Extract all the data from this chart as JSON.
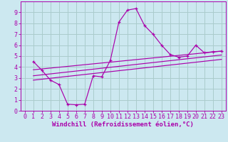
{
  "background_color": "#cce8f0",
  "grid_color": "#aacccc",
  "line_color": "#aa00aa",
  "xlim": [
    -0.5,
    23.5
  ],
  "ylim": [
    0,
    10
  ],
  "xticks": [
    0,
    1,
    2,
    3,
    4,
    5,
    6,
    7,
    8,
    9,
    10,
    11,
    12,
    13,
    14,
    15,
    16,
    17,
    18,
    19,
    20,
    21,
    22,
    23
  ],
  "yticks": [
    0,
    1,
    2,
    3,
    4,
    5,
    6,
    7,
    8,
    9
  ],
  "xlabel": "Windchill (Refroidissement éolien,°C)",
  "xlabel_fontsize": 6.5,
  "tick_fontsize": 6.0,
  "curve1_x": [
    1,
    2,
    3,
    4,
    5,
    6,
    7,
    8,
    9,
    10,
    11,
    12,
    13,
    14,
    15,
    16,
    17,
    18,
    19,
    20,
    21,
    22,
    23
  ],
  "curve1_y": [
    4.5,
    3.7,
    2.8,
    2.4,
    0.6,
    0.55,
    0.6,
    3.2,
    3.1,
    4.6,
    8.1,
    9.2,
    9.35,
    7.8,
    7.0,
    6.0,
    5.15,
    4.9,
    5.0,
    6.0,
    5.3,
    5.4,
    5.45
  ],
  "line2_x": [
    1,
    23
  ],
  "line2_y": [
    3.75,
    5.45
  ],
  "line3_x": [
    1,
    23
  ],
  "line3_y": [
    2.8,
    4.7
  ],
  "line4_x": [
    1,
    23
  ],
  "line4_y": [
    3.2,
    5.1
  ]
}
